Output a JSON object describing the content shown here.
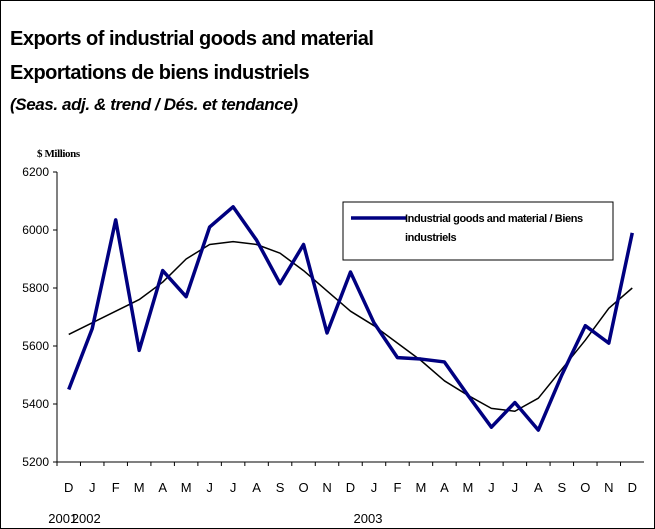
{
  "chart_data": {
    "type": "line",
    "title": "Exports of industrial goods and material",
    "title_fr": "Exportations de biens industriels",
    "subtitle": "(Seas. adj. & trend / Dés. et tendance)",
    "y_label": "$ Millions",
    "categories": [
      "D",
      "J",
      "F",
      "M",
      "A",
      "M",
      "J",
      "J",
      "A",
      "S",
      "O",
      "N",
      "D",
      "J",
      "F",
      "M",
      "A",
      "M",
      "J",
      "J",
      "A",
      "S",
      "O",
      "N",
      "D"
    ],
    "year_labels": [
      "2001",
      "2002",
      null,
      null,
      null,
      null,
      null,
      null,
      null,
      null,
      null,
      null,
      null,
      "2003",
      null,
      null,
      null,
      null,
      null,
      null,
      null,
      null,
      null,
      null,
      null
    ],
    "series": [
      {
        "name": "Industrial goods and material / Biens industriels",
        "color": "#000080",
        "values": [
          5450,
          5660,
          6035,
          5585,
          5860,
          5770,
          6010,
          6080,
          5965,
          5815,
          5950,
          5645,
          5855,
          5680,
          5560,
          5555,
          5545,
          5430,
          5320,
          5405,
          5310,
          5500,
          5670,
          5610,
          5990
        ]
      }
    ],
    "trend": {
      "color": "#000000",
      "values": [
        5640,
        5680,
        5720,
        5760,
        5820,
        5900,
        5950,
        5960,
        5950,
        5920,
        5860,
        5790,
        5720,
        5670,
        5610,
        5550,
        5480,
        5430,
        5385,
        5375,
        5420,
        5520,
        5620,
        5730,
        5800
      ]
    },
    "ylim": [
      5200,
      6200
    ],
    "yticks": [
      5200,
      5400,
      5600,
      5800,
      6000,
      6200
    ],
    "grid": false
  }
}
